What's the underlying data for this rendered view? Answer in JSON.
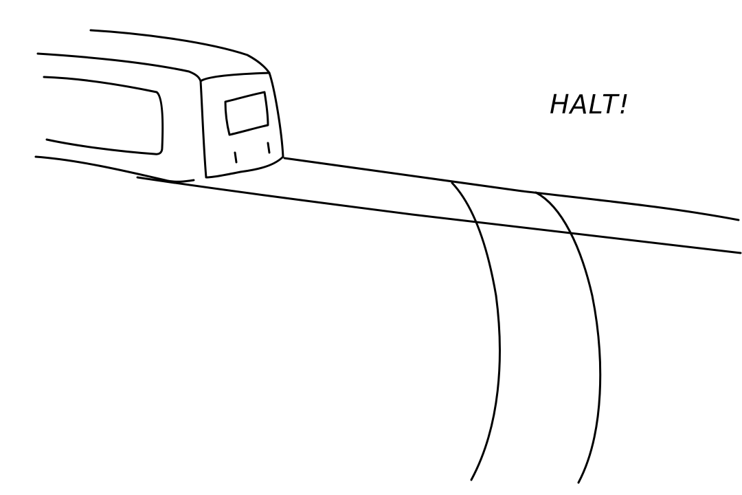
{
  "caption": "HALT!"
}
